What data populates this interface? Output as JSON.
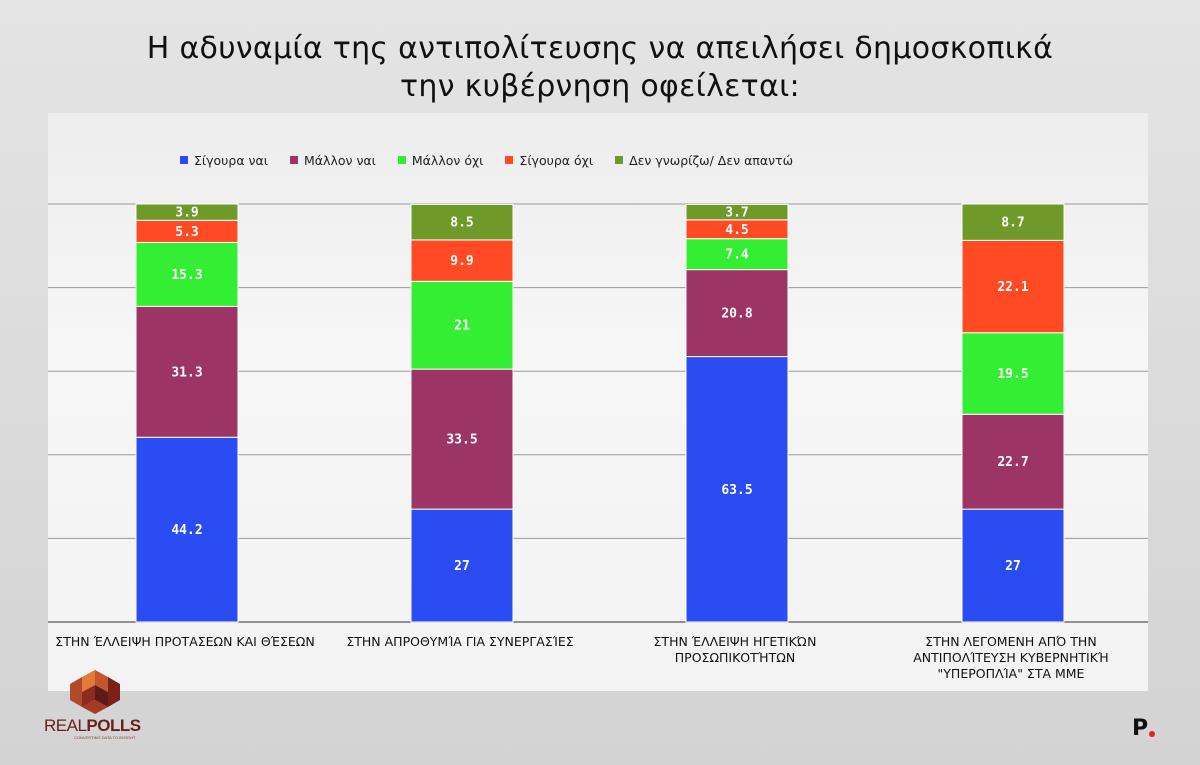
{
  "chart_data": {
    "type": "bar",
    "stacked": true,
    "title_lines": [
      "Η αδυναμία της αντιπολίτευσης να απειλήσει δημοσκοπικά",
      "την κυβέρνηση οφείλεται:"
    ],
    "categories": [
      [
        "ΣΤΗΝ ΈΛΛΕΙΨΗ ΠΡΟΤΑΣΕΩΝ ΚΑΙ ΘΈΣΕΩΝ"
      ],
      [
        "ΣΤΗΝ ΑΠΡΟΘΥΜΊΑ ΓΙΑ ΣΥΝΕΡΓΑΣΊΕΣ"
      ],
      [
        "ΣΤΗΝ ΈΛΛΕΙΨΗ ΗΓΕΤΙΚΏΝ",
        "ΠΡΟΣΩΠΙΚΟΤΉΤΩΝ"
      ],
      [
        "ΣΤΗΝ ΛΕΓΟΜΕΝΗ ΑΠΌ ΤΗΝ",
        "ΑΝΤΙΠΟΛΊΤΕΥΣΗ ΚΥΒΕΡΝΗΤΙΚΉ",
        "\"ΥΠΕΡΟΠΛΊΑ\" ΣΤΑ ΜΜΕ"
      ]
    ],
    "series": [
      {
        "name": "Σίγουρα ναι",
        "color": "#2b4cf3",
        "values": [
          44.2,
          27,
          63.5,
          27
        ],
        "labels": [
          "44.2",
          "27",
          "63.5",
          "27"
        ]
      },
      {
        "name": "Μάλλον ναι",
        "color": "#9c3465",
        "values": [
          31.3,
          33.5,
          20.8,
          22.7
        ],
        "labels": [
          "31.3",
          "33.5",
          "20.8",
          "22.7"
        ]
      },
      {
        "name": "Μάλλον όχι",
        "color": "#33ee33",
        "values": [
          15.3,
          21,
          7.4,
          19.5
        ],
        "labels": [
          "15.3",
          "21",
          "7.4",
          "19.5"
        ]
      },
      {
        "name": "Σίγουρα όχι",
        "color": "#ff4a24",
        "values": [
          5.3,
          9.9,
          4.5,
          22.1
        ],
        "labels": [
          "5.3",
          "9.9",
          "4.5",
          "22.1"
        ]
      },
      {
        "name": "Δεν γνωρίζω/ Δεν απαντώ",
        "color": "#6f9a2a",
        "values": [
          3.9,
          8.5,
          3.7,
          8.7
        ],
        "labels": [
          "3.9",
          "8.5",
          "3.7",
          "8.7"
        ]
      }
    ],
    "ylim": [
      0,
      100
    ],
    "gridlines": [
      0,
      20,
      40,
      60,
      80,
      100
    ],
    "legend_position": "top-left"
  },
  "branding": {
    "left_logo_text_light": "REAL",
    "left_logo_text_bold": "POLLS",
    "left_logo_tagline": "CONVERTING DATA TO INSIGHT",
    "right_logo_text": "P"
  }
}
